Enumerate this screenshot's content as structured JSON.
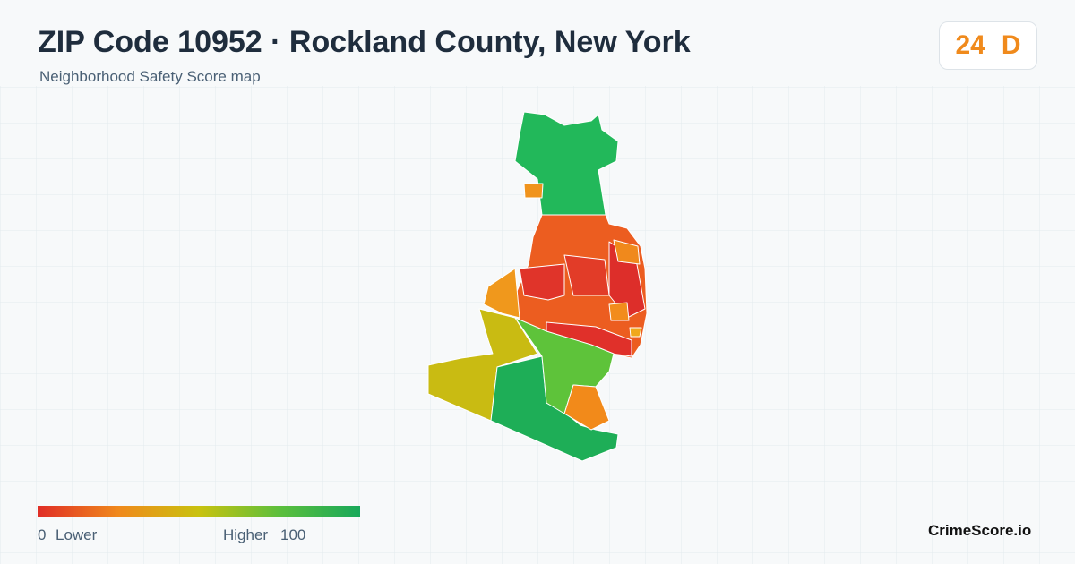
{
  "header": {
    "title": "ZIP Code 10952 · Rockland County, New York",
    "subtitle": "Neighborhood Safety Score map"
  },
  "score": {
    "value": 24,
    "grade": "D"
  },
  "legend": {
    "min": 0,
    "min_label": "Lower",
    "max_label": "Higher",
    "max": 100
  },
  "brand": "CrimeScore.io"
}
